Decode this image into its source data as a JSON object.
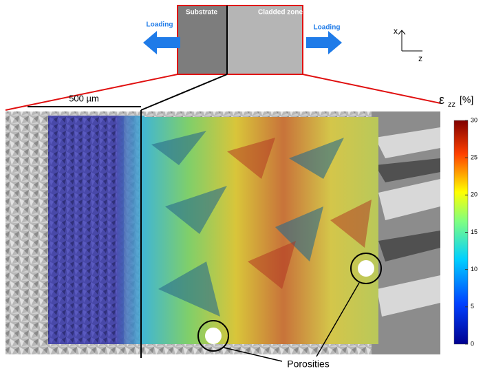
{
  "schematic": {
    "substrate": "Substrate",
    "cladded_zone": "Cladded zone",
    "loading_left": "Loading",
    "loading_right": "Loading",
    "axis_x": "x",
    "axis_z": "z"
  },
  "scale_bar": "500 µm",
  "colorbar": {
    "symbol": "ε",
    "subscript": "zz",
    "unit": "[%]",
    "range": [
      0,
      30
    ],
    "ticks": [
      0,
      5,
      10,
      15,
      20,
      25,
      30
    ]
  },
  "annotation": "Porosities"
}
